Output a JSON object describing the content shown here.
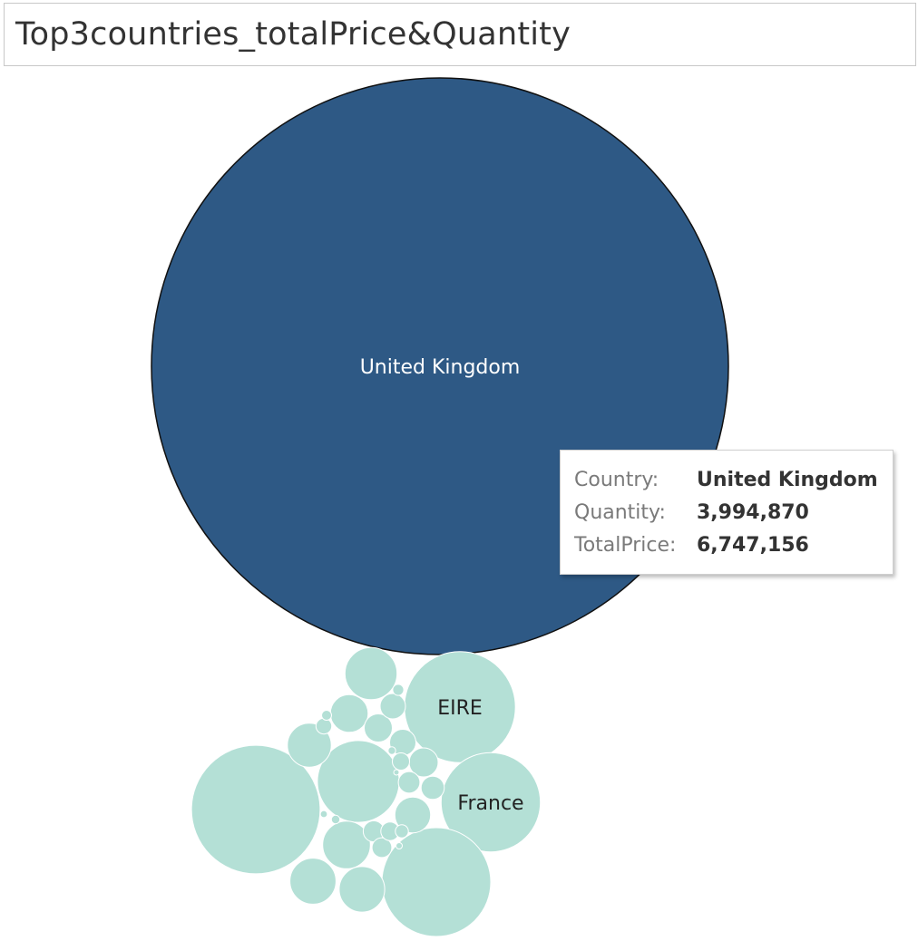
{
  "chart_data": {
    "type": "packed-bubble",
    "title": "Top3countries_totalPrice&Quantity",
    "size_measure": "TotalPrice",
    "colors": {
      "highlight": "#2e5985",
      "other": "#b4e0d6",
      "outline": "#111111"
    },
    "bubbles": [
      {
        "country": "United Kingdom",
        "totalPrice": 6747156,
        "quantity": 3994870,
        "highlighted": true
      },
      {
        "country": "EIRE",
        "totalPrice": 250000,
        "highlighted": false
      },
      {
        "country": "France",
        "totalPrice": 200000,
        "highlighted": false
      },
      {
        "country": "",
        "totalPrice": 335000,
        "highlighted": false
      },
      {
        "country": "",
        "totalPrice": 240000,
        "highlighted": false
      },
      {
        "country": "",
        "totalPrice": 136000,
        "highlighted": false
      },
      {
        "country": "",
        "totalPrice": 55000,
        "highlighted": false
      },
      {
        "country": "",
        "totalPrice": 46000,
        "highlighted": false
      },
      {
        "country": "",
        "totalPrice": 43000,
        "highlighted": false
      },
      {
        "country": "",
        "totalPrice": 42000,
        "highlighted": false
      },
      {
        "country": "",
        "totalPrice": 39000,
        "highlighted": false
      },
      {
        "country": "",
        "totalPrice": 29000,
        "highlighted": false
      },
      {
        "country": "",
        "totalPrice": 26000,
        "highlighted": false
      },
      {
        "country": "",
        "totalPrice": 17000,
        "highlighted": false
      },
      {
        "country": "",
        "totalPrice": 16000,
        "highlighted": false
      },
      {
        "country": "",
        "totalPrice": 14000,
        "highlighted": false
      },
      {
        "country": "",
        "totalPrice": 13000,
        "highlighted": false
      },
      {
        "country": "",
        "totalPrice": 11000,
        "highlighted": false
      },
      {
        "country": "",
        "totalPrice": 9500,
        "highlighted": false
      },
      {
        "country": "",
        "totalPrice": 9000,
        "highlighted": false
      },
      {
        "country": "",
        "totalPrice": 8000,
        "highlighted": false
      },
      {
        "country": "",
        "totalPrice": 7000,
        "highlighted": false
      },
      {
        "country": "",
        "totalPrice": 6000,
        "highlighted": false
      },
      {
        "country": "",
        "totalPrice": 5000,
        "highlighted": false
      },
      {
        "country": "",
        "totalPrice": 3500,
        "highlighted": false
      },
      {
        "country": "",
        "totalPrice": 2500,
        "highlighted": false
      },
      {
        "country": "",
        "totalPrice": 2000,
        "highlighted": false
      },
      {
        "country": "",
        "totalPrice": 1500,
        "highlighted": false
      },
      {
        "country": "",
        "totalPrice": 1200,
        "highlighted": false
      },
      {
        "country": "",
        "totalPrice": 1000,
        "highlighted": false
      },
      {
        "country": "",
        "totalPrice": 800,
        "highlighted": false
      },
      {
        "country": "",
        "totalPrice": 600,
        "highlighted": false
      }
    ]
  },
  "tooltip": {
    "rows": [
      {
        "label": "Country:",
        "value": "United Kingdom"
      },
      {
        "label": "Quantity:",
        "value": "3,994,870"
      },
      {
        "label": "TotalPrice:",
        "value": "6,747,156"
      }
    ]
  }
}
